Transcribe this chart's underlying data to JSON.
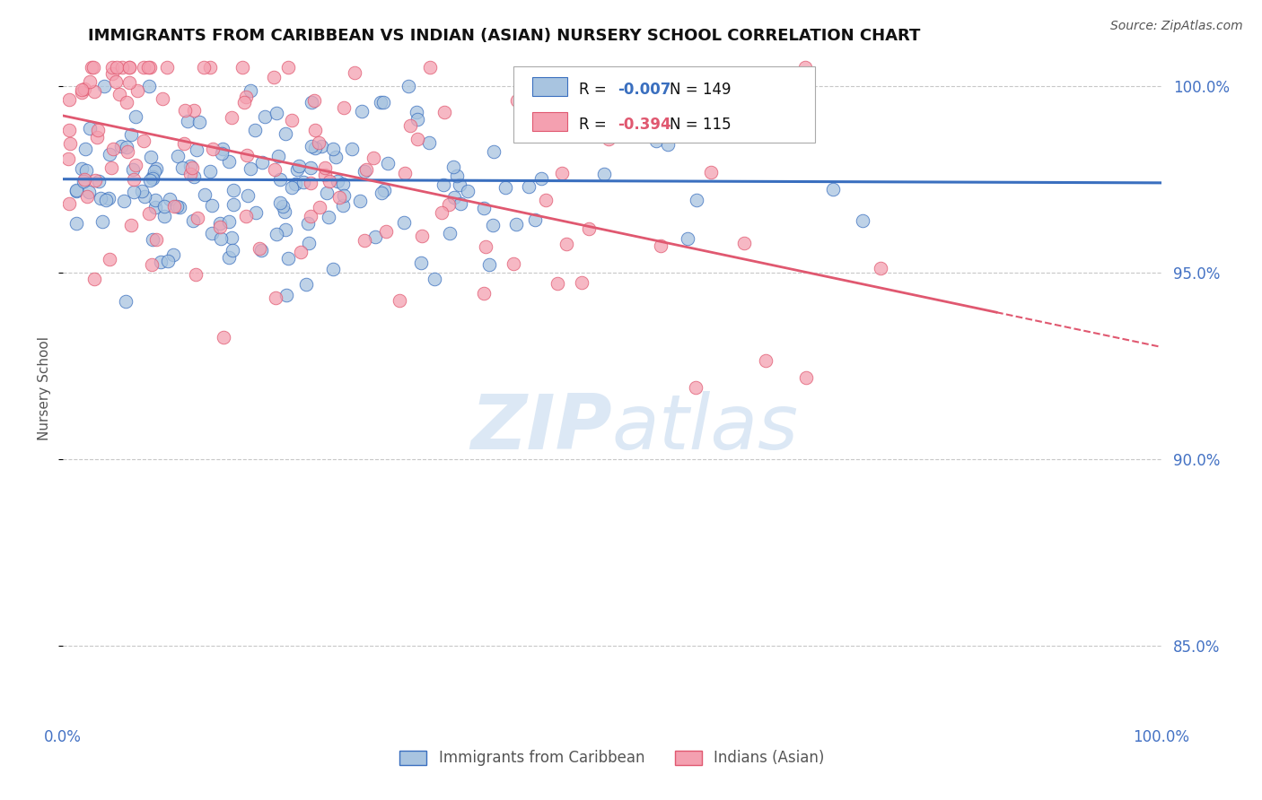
{
  "title": "IMMIGRANTS FROM CARIBBEAN VS INDIAN (ASIAN) NURSERY SCHOOL CORRELATION CHART",
  "source_text": "Source: ZipAtlas.com",
  "ylabel": "Nursery School",
  "xlim": [
    0.0,
    1.0
  ],
  "ylim": [
    0.83,
    1.008
  ],
  "yticks": [
    0.85,
    0.9,
    0.95,
    1.0
  ],
  "ytick_labels": [
    "85.0%",
    "90.0%",
    "95.0%",
    "100.0%"
  ],
  "blue_trend_y_start": 0.975,
  "blue_trend_y_end": 0.974,
  "pink_trend_y_start": 0.992,
  "pink_trend_y_end": 0.93,
  "blue_scatter_color": "#a8c4e0",
  "pink_scatter_color": "#f4a0b0",
  "blue_edge_color": "#3a6fbf",
  "pink_edge_color": "#e05870",
  "blue_line_color": "#3a6fbf",
  "pink_line_color": "#e05870",
  "grid_color": "#c8c8c8",
  "watermark_color": "#dce8f5",
  "background_color": "#ffffff",
  "legend_box_color": "#aaaaaa",
  "r_blue": "-0.007",
  "n_blue": "149",
  "r_pink": "-0.394",
  "n_pink": "115",
  "tick_color": "#4472c4",
  "label_color": "#555555"
}
